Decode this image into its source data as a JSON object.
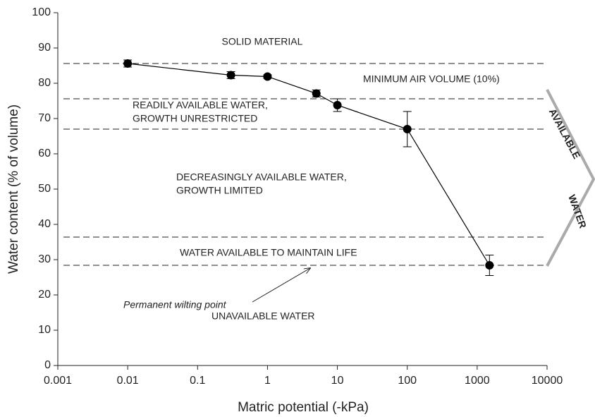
{
  "chart_data": {
    "type": "line",
    "x_label": "Matric potential  (-kPa)",
    "y_label": "Water content (% of volume)",
    "x": [
      0.01,
      0.3,
      1,
      5,
      10,
      100,
      1500
    ],
    "series": [
      {
        "color": "#000000",
        "values": [
          85.6,
          82.3,
          81.9,
          77.1,
          73.8,
          67,
          28.4
        ],
        "errors": [
          1,
          1,
          0.5,
          1,
          1.8,
          5,
          2.9
        ]
      }
    ],
    "xlim": [
      0.001,
      10000
    ],
    "xticks": [
      0.001,
      0.01,
      0.1,
      1,
      10,
      100,
      1000,
      10000
    ],
    "x_log": true,
    "ylim": [
      0,
      100
    ],
    "yticks": [
      0,
      10,
      20,
      30,
      40,
      50,
      60,
      70,
      80,
      90,
      100
    ],
    "reference_lines": [
      85.6,
      75.6,
      67,
      36.4,
      28.4
    ],
    "annotations": [
      [
        "SOLID MATERIAL"
      ],
      [
        "MINIMUM AIR VOLUME (10%)"
      ],
      [
        "READILY AVAILABLE WATER,",
        "GROWTH UNRESTRICTED"
      ],
      [
        "DECREASINGLY AVAILABLE WATER,",
        "GROWTH LIMITED"
      ],
      [
        "WATER AVAILABLE TO MAINTAIN LIFE"
      ],
      [
        "UNAVAILABLE WATER"
      ]
    ],
    "arrow_label": "Permanent wilting point",
    "bracket_labels": [
      "AVAILABLE",
      "WATER"
    ]
  }
}
